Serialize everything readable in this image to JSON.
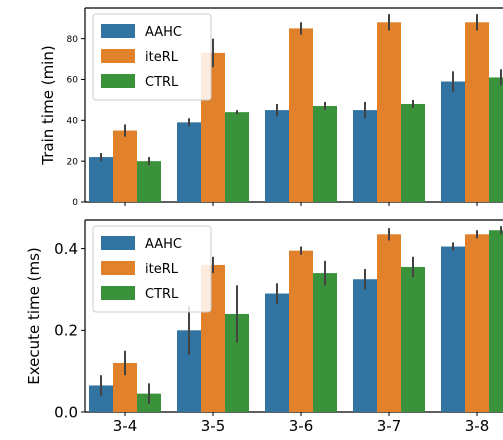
{
  "chart_data": [
    {
      "type": "bar",
      "ylabel": "Train time (min)",
      "ylim": [
        0,
        95
      ],
      "yticks": [
        0,
        20,
        40,
        60,
        80
      ],
      "ytick_labels": [
        "0",
        "20",
        "40",
        "60",
        "80"
      ],
      "show_xtick_labels": false,
      "categories": [
        "3-4",
        "3-5",
        "3-6",
        "3-7",
        "3-8"
      ],
      "legend": "top-left",
      "series": [
        {
          "name": "AAHC",
          "color": "#3274a1",
          "values": [
            22,
            39,
            45,
            45,
            59
          ],
          "err": [
            2,
            2,
            3,
            4,
            5
          ]
        },
        {
          "name": "iteRL",
          "color": "#e1812c",
          "values": [
            35,
            73,
            85,
            88,
            88
          ],
          "err": [
            3,
            7,
            3,
            4,
            4
          ]
        },
        {
          "name": "CTRL",
          "color": "#3a923a",
          "values": [
            20,
            44,
            47,
            48,
            61
          ],
          "err": [
            2,
            1,
            2,
            2,
            4
          ]
        }
      ]
    },
    {
      "type": "bar",
      "ylabel": "Execute time (ms)",
      "ylim": [
        0,
        0.47
      ],
      "yticks": [
        0.0,
        0.2,
        0.4
      ],
      "ytick_labels": [
        "0.0",
        "0.2",
        "0.4"
      ],
      "show_xtick_labels": true,
      "categories": [
        "3-4",
        "3-5",
        "3-6",
        "3-7",
        "3-8"
      ],
      "legend": "top-left",
      "series": [
        {
          "name": "AAHC",
          "color": "#3274a1",
          "values": [
            0.065,
            0.2,
            0.29,
            0.325,
            0.405
          ],
          "err": [
            0.025,
            0.06,
            0.025,
            0.025,
            0.01
          ]
        },
        {
          "name": "iteRL",
          "color": "#e1812c",
          "values": [
            0.12,
            0.36,
            0.395,
            0.435,
            0.435
          ],
          "err": [
            0.03,
            0.02,
            0.01,
            0.015,
            0.01
          ]
        },
        {
          "name": "CTRL",
          "color": "#3a923a",
          "values": [
            0.045,
            0.24,
            0.34,
            0.355,
            0.445
          ],
          "err": [
            0.025,
            0.07,
            0.03,
            0.025,
            0.01
          ]
        }
      ]
    }
  ]
}
